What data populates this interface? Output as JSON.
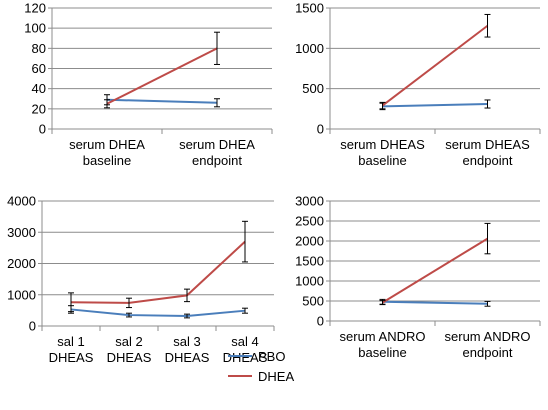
{
  "colors": {
    "PBO": "#4a7ebb",
    "DHEA": "#be4b48",
    "grid": "#8c8c8c",
    "axis": "#8c8c8c",
    "errorbar": "#000000"
  },
  "legend": {
    "placement": "bottom-center",
    "items": [
      {
        "label": "PBO",
        "color": "#4a7ebb"
      },
      {
        "label": "DHEA",
        "color": "#be4b48"
      }
    ]
  },
  "chart_data": [
    {
      "type": "line",
      "categories": [
        [
          "serum DHEA",
          "baseline"
        ],
        [
          "serum DHEA",
          "endpoint"
        ]
      ],
      "ylim": [
        0,
        120
      ],
      "yticks": [
        0,
        20,
        40,
        60,
        80,
        100,
        120
      ],
      "grid": "horizontal",
      "series": [
        {
          "name": "PBO",
          "values": [
            29,
            26
          ],
          "err": [
            5,
            4
          ]
        },
        {
          "name": "DHEA",
          "values": [
            25,
            80
          ],
          "err": [
            4,
            16
          ]
        }
      ]
    },
    {
      "type": "line",
      "categories": [
        [
          "serum DHEAS",
          "baseline"
        ],
        [
          "serum DHEAS",
          "endpoint"
        ]
      ],
      "ylim": [
        0,
        1500
      ],
      "yticks": [
        0,
        500,
        1000,
        1500
      ],
      "grid": "horizontal",
      "series": [
        {
          "name": "PBO",
          "values": [
            280,
            310
          ],
          "err": [
            40,
            50
          ]
        },
        {
          "name": "DHEA",
          "values": [
            290,
            1280
          ],
          "err": [
            40,
            140
          ]
        }
      ]
    },
    {
      "type": "line",
      "categories": [
        [
          "sal 1",
          "DHEAS"
        ],
        [
          "sal 2",
          "DHEAS"
        ],
        [
          "sal 3",
          "DHEAS"
        ],
        [
          "sal 4",
          "DHEAS"
        ]
      ],
      "ylim": [
        0,
        4000
      ],
      "yticks": [
        0,
        1000,
        2000,
        3000,
        4000
      ],
      "grid": "horizontal",
      "series": [
        {
          "name": "PBO",
          "values": [
            530,
            350,
            320,
            490
          ],
          "err": [
            120,
            60,
            60,
            80
          ]
        },
        {
          "name": "DHEA",
          "values": [
            760,
            740,
            980,
            2700
          ],
          "err": [
            300,
            150,
            200,
            650
          ]
        }
      ]
    },
    {
      "type": "line",
      "categories": [
        [
          "serum ANDRO",
          "baseline"
        ],
        [
          "serum ANDRO",
          "endpoint"
        ]
      ],
      "ylim": [
        0,
        3000
      ],
      "yticks": [
        0,
        500,
        1000,
        1500,
        2000,
        2500,
        3000
      ],
      "grid": "horizontal",
      "series": [
        {
          "name": "PBO",
          "values": [
            480,
            430
          ],
          "err": [
            60,
            60
          ]
        },
        {
          "name": "DHEA",
          "values": [
            460,
            2060
          ],
          "err": [
            50,
            380
          ]
        }
      ]
    }
  ]
}
